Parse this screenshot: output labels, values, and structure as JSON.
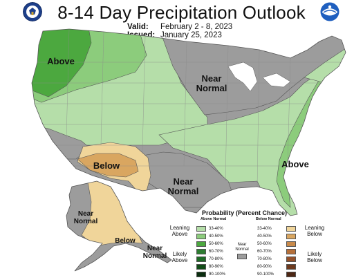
{
  "title": "8-14 Day Precipitation Outlook",
  "valid_label": "Valid:",
  "valid_value": "February 2 - 8, 2023",
  "issued_label": "Issued:",
  "issued_value": "January 25, 2023",
  "logos": {
    "left": "doc-seal-icon",
    "right": "noaa-logo-icon"
  },
  "colors": {
    "above_33_40": "#b5dea9",
    "above_40_50": "#8ccc7c",
    "above_50_60": "#4ca83f",
    "above_60_70": "#2e7d32",
    "above_70_80": "#1f6b27",
    "above_80_90": "#124d18",
    "above_90_100": "#0b2e0f",
    "near_normal": "#9c9c9c",
    "below_33_40": "#f0d59a",
    "below_40_50": "#d9a660",
    "below_50_60": "#c98a4b",
    "below_60_70": "#b5703a",
    "below_70_80": "#94512a",
    "below_80_90": "#6e3a1e",
    "below_90_100": "#4d2714"
  },
  "map_labels": {
    "above_west": "Above",
    "near_normal_north": "Near\nNormal",
    "below_southwest": "Below",
    "near_normal_texas": "Near\nNormal",
    "above_southeast": "Above",
    "near_normal_alaska": "Near\nNormal",
    "below_alaska": "Below",
    "near_normal_se_alaska": "Near\nNormal"
  },
  "legend": {
    "title": "Probability (Percent Chance)",
    "above_header": "Above Normal",
    "below_header": "Below Normal",
    "near_normal_label": "Near\nNormal",
    "leaning_above": "Leaning\nAbove",
    "likely_above": "Likely\nAbove",
    "leaning_below": "Leaning\nBelow",
    "likely_below": "Likely\nBelow",
    "ranges": [
      "33-40%",
      "40-50%",
      "50-60%",
      "60-70%",
      "70-80%",
      "80-90%",
      "90-100%"
    ]
  }
}
